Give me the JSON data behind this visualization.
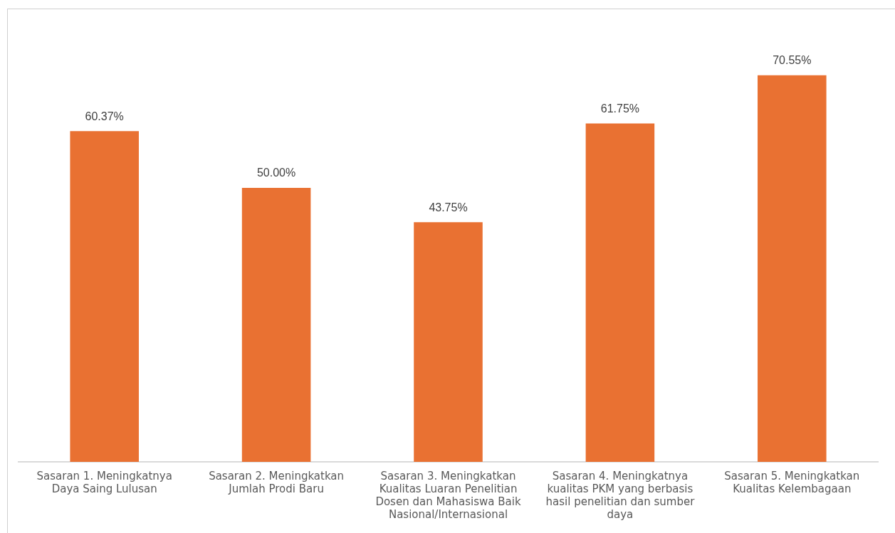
{
  "chart_data": {
    "type": "bar",
    "categories": [
      "Sasaran 1. Meningkatnya Daya Saing Lulusan",
      "Sasaran 2. Meningkatkan Jumlah Prodi Baru",
      "Sasaran 3. Meningkatkan Kualitas Luaran Penelitian Dosen dan Mahasiswa Baik Nasional/Internasional",
      "Sasaran 4. Meningkatnya kualitas PKM yang berbasis hasil penelitian dan sumber daya",
      "Sasaran 5. Meningkatkan Kualitas Kelembagaan"
    ],
    "values": [
      60.37,
      50.0,
      43.75,
      61.75,
      70.55
    ],
    "value_labels": [
      "60.37%",
      "50.00%",
      "43.75%",
      "61.75%",
      "70.55%"
    ],
    "color": "#e97132",
    "grid": false,
    "legend": false
  }
}
